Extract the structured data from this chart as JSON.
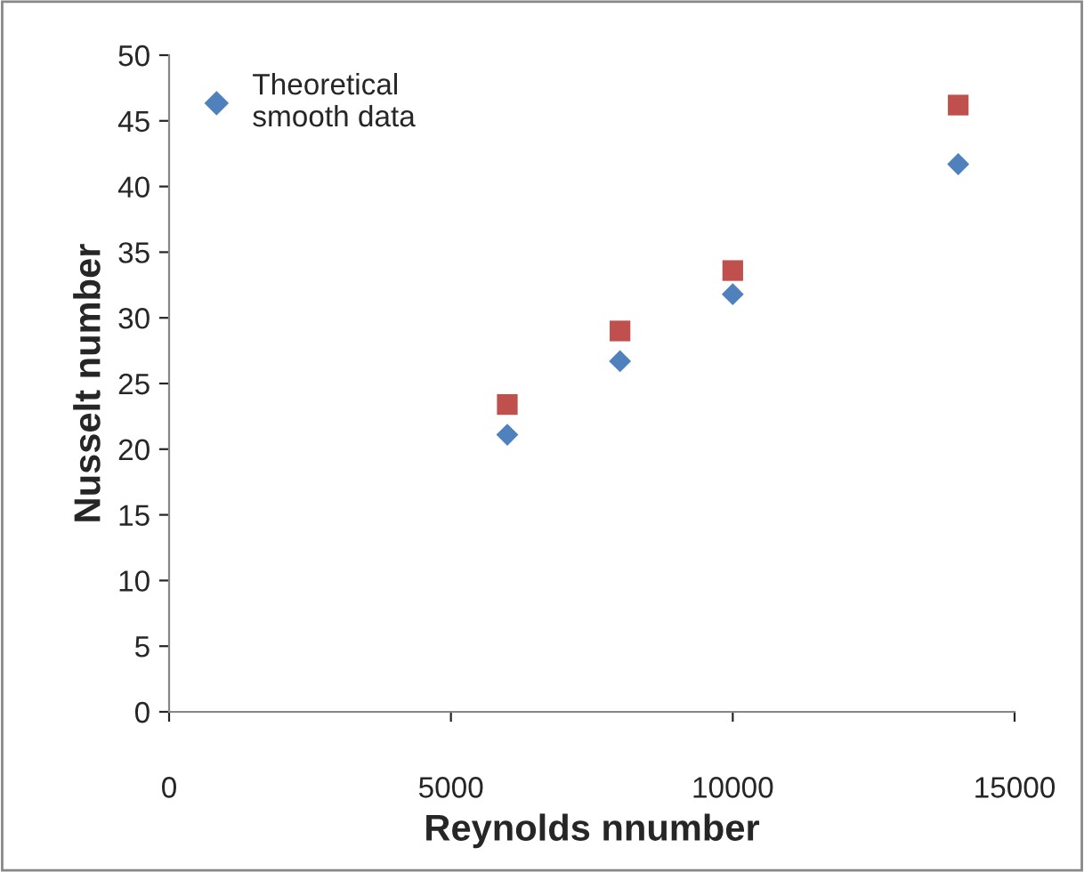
{
  "chart_data": {
    "type": "scatter",
    "xlabel": "Reynolds nnumber",
    "ylabel": "Nusselt number",
    "xlim": [
      0,
      15000
    ],
    "xticks": [
      0,
      5000,
      10000,
      15000
    ],
    "ylim": [
      0,
      50
    ],
    "yticks": [
      0,
      5,
      10,
      15,
      20,
      25,
      30,
      35,
      40,
      45,
      50
    ],
    "grid": false,
    "legend": "top left",
    "series": [
      {
        "name": "Theoretical\nsmooth data",
        "color": "#4f81bd",
        "marker": "diamond",
        "x": [
          6000,
          8000,
          10000,
          14000
        ],
        "values": [
          21.1,
          26.7,
          31.8,
          41.7
        ]
      },
      {
        "color": "#c0504d",
        "marker": "square",
        "x": [
          6000,
          8000,
          10000,
          14000
        ],
        "values": [
          23.4,
          29.0,
          33.6,
          46.2
        ]
      }
    ]
  }
}
